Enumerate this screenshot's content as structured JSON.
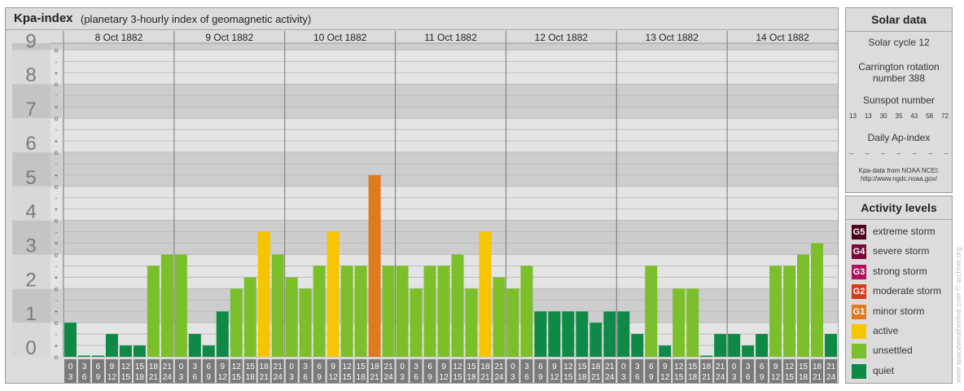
{
  "header": {
    "title": "Kpa-index",
    "subtitle": "(planetary 3-hourly index of geomagnetic activity)"
  },
  "solar": {
    "title": "Solar data",
    "cycle": "Solar cycle 12",
    "carrington_line1": "Carrington rotation",
    "carrington_line2": "number 388",
    "sunspot_title": "Sunspot number",
    "sunspot_values": [
      "13",
      "13",
      "30",
      "35",
      "43",
      "58",
      "72"
    ],
    "ap_title": "Daily Ap-index",
    "ap_values": [
      "--",
      "--",
      "--",
      "--",
      "--",
      "--",
      "--"
    ],
    "note_line1": "Kpa-data from NOAA NCEI:",
    "note_line2": "http://www.ngdc.noaa.gov/"
  },
  "levels": {
    "title": "Activity levels",
    "items": [
      {
        "badge": "G5",
        "label": "extreme storm",
        "color": "#4d0019"
      },
      {
        "badge": "G4",
        "label": "severe storm",
        "color": "#7a0a3c"
      },
      {
        "badge": "G3",
        "label": "strong storm",
        "color": "#b0105a"
      },
      {
        "badge": "G2",
        "label": "moderate storm",
        "color": "#d93a1a"
      },
      {
        "badge": "G1",
        "label": "minor storm",
        "color": "#e07a1e"
      },
      {
        "badge": "",
        "label": "active",
        "color": "#f7c400"
      },
      {
        "badge": "",
        "label": "unsettled",
        "color": "#7bbf2a"
      },
      {
        "badge": "",
        "label": "quiet",
        "color": "#0e8a46"
      }
    ]
  },
  "watermark": "www.spaceweatherlive.com © archive.org",
  "chart_data": {
    "type": "bar",
    "title": "Kpa-index",
    "ylim": [
      0,
      9
    ],
    "y_ticks": [
      "0",
      "1",
      "2",
      "3",
      "4",
      "5",
      "6",
      "7",
      "8",
      "9"
    ],
    "minor_labels": [
      "o",
      "+",
      "-"
    ],
    "days": [
      "8 Oct 1882",
      "9 Oct 1882",
      "10 Oct 1882",
      "11 Oct 1882",
      "12 Oct 1882",
      "13 Oct 1882",
      "14 Oct 1882"
    ],
    "hour_ranges": [
      [
        "0",
        "3"
      ],
      [
        "3",
        "6"
      ],
      [
        "6",
        "9"
      ],
      [
        "9",
        "12"
      ],
      [
        "12",
        "15"
      ],
      [
        "15",
        "18"
      ],
      [
        "18",
        "21"
      ],
      [
        "21",
        "24"
      ]
    ],
    "series": [
      {
        "values": [
          1.0,
          0.0,
          0.0,
          0.67,
          0.33,
          0.33,
          2.67,
          3.0,
          3.0,
          0.67,
          0.33,
          1.33,
          2.0,
          2.33,
          3.67,
          3.0,
          2.33,
          2.0,
          2.67,
          3.67,
          2.67,
          2.67,
          5.33,
          2.67,
          2.67,
          2.0,
          2.67,
          2.67,
          3.0,
          2.0,
          3.67,
          2.33,
          2.0,
          2.67,
          1.33,
          1.33,
          1.33,
          1.33,
          1.0,
          1.33,
          1.33,
          0.67,
          2.67,
          0.33,
          2.0,
          2.0,
          0.0,
          0.67,
          0.67,
          0.33,
          0.67,
          2.67,
          2.67,
          3.0,
          3.33,
          0.67
        ]
      }
    ],
    "level_colors": {
      "quiet": "#0e8a46",
      "unsettled": "#7bbf2a",
      "active": "#f7c400",
      "minor_storm": "#e07a1e"
    }
  }
}
